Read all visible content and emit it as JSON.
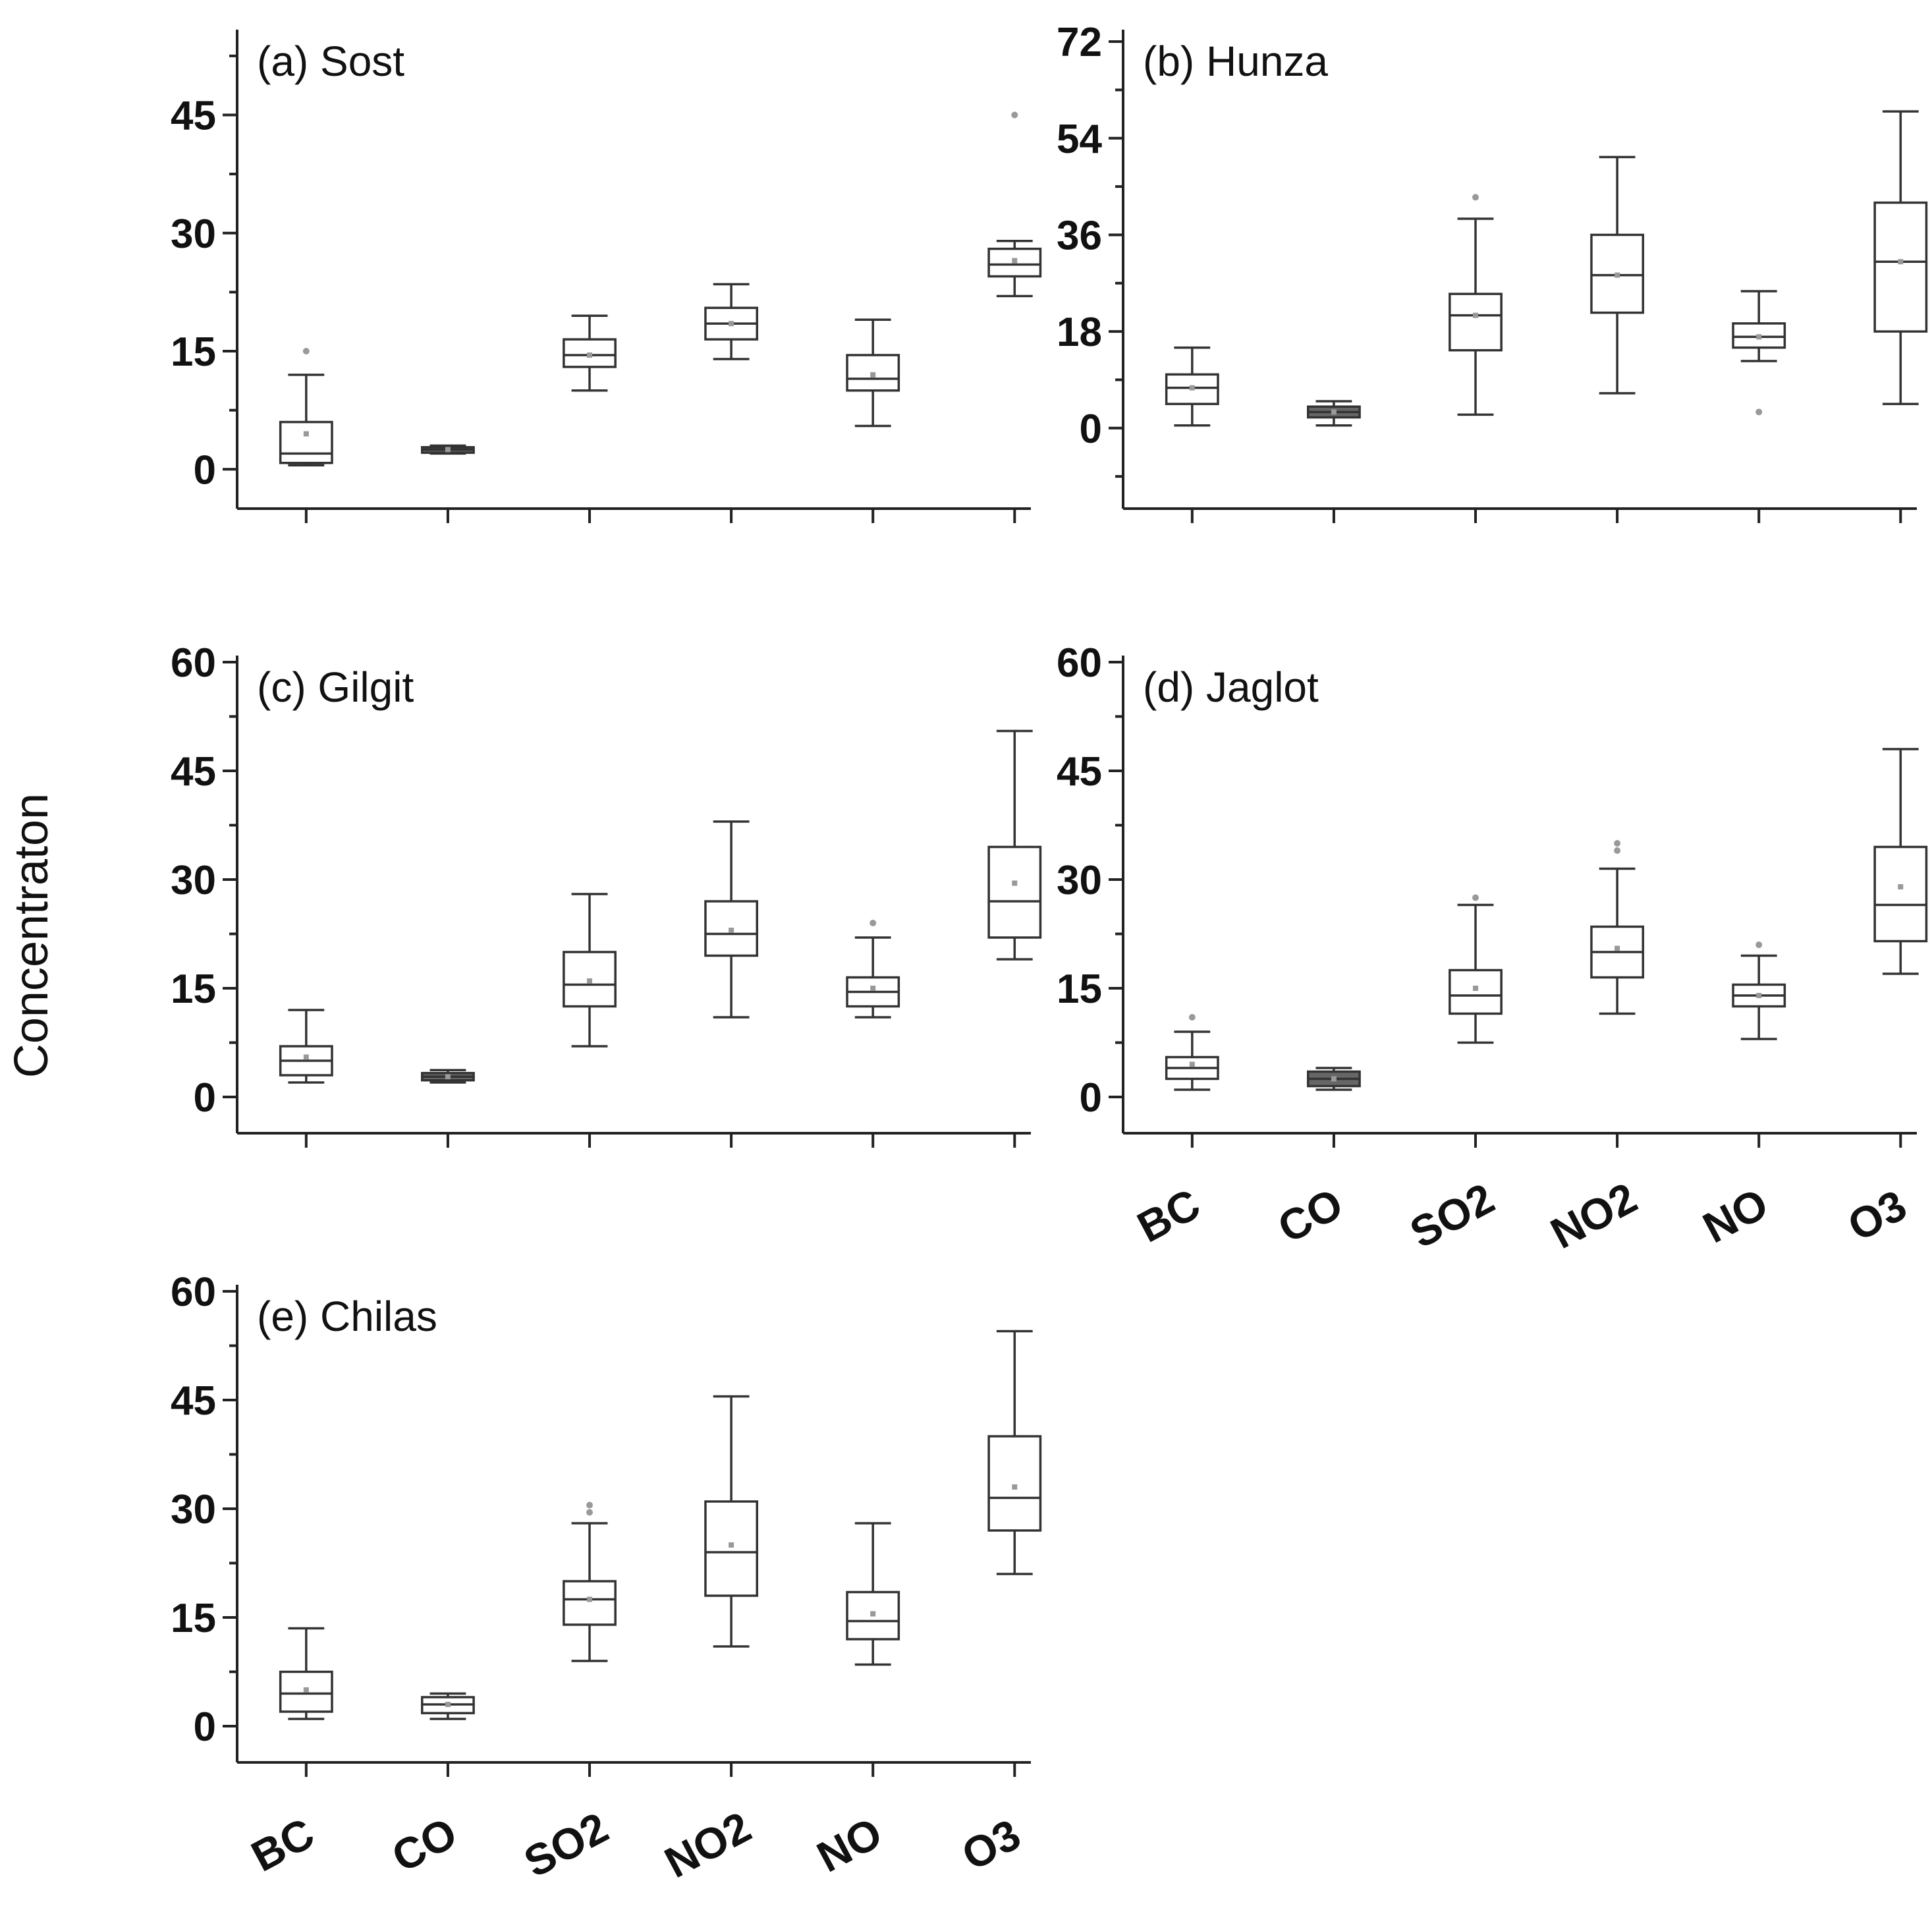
{
  "chart_data": {
    "type": "box",
    "ylabel": "Concentraton",
    "categories": [
      "BC",
      "CO",
      "SO2",
      "NO2",
      "NO",
      "O3"
    ],
    "panels": [
      {
        "id": "a",
        "title": "(a) Sost",
        "ylim": [
          -5,
          55
        ],
        "yticks": [
          0,
          15,
          30,
          45
        ],
        "show_category_labels": false,
        "boxes": [
          {
            "min": 0.5,
            "q1": 0.8,
            "median": 2,
            "q3": 6,
            "max": 12,
            "mean": 4.5,
            "outliers": [
              15
            ]
          },
          {
            "min": 2,
            "q1": 2.1,
            "median": 2.5,
            "q3": 2.8,
            "max": 3,
            "mean": 2.5,
            "outliers": [],
            "dark": true
          },
          {
            "min": 10,
            "q1": 13,
            "median": 14.5,
            "q3": 16.5,
            "max": 19.5,
            "mean": 14.5,
            "outliers": []
          },
          {
            "min": 14,
            "q1": 16.5,
            "median": 18.5,
            "q3": 20.5,
            "max": 23.5,
            "mean": 18.5,
            "outliers": []
          },
          {
            "min": 5.5,
            "q1": 10,
            "median": 11.5,
            "q3": 14.5,
            "max": 19,
            "mean": 12,
            "outliers": []
          },
          {
            "min": 22,
            "q1": 24.5,
            "median": 26,
            "q3": 28,
            "max": 29,
            "mean": 26.5,
            "outliers": [
              45
            ]
          }
        ]
      },
      {
        "id": "b",
        "title": "(b) Hunza",
        "ylim": [
          -15,
          73
        ],
        "yticks": [
          0,
          18,
          36,
          54,
          72
        ],
        "show_category_labels": false,
        "boxes": [
          {
            "min": 0.5,
            "q1": 4.5,
            "median": 7.5,
            "q3": 10,
            "max": 15,
            "mean": 7.5,
            "outliers": []
          },
          {
            "min": 0.5,
            "q1": 2,
            "median": 3,
            "q3": 4,
            "max": 5,
            "mean": 3,
            "outliers": [],
            "dark": true
          },
          {
            "min": 2.5,
            "q1": 14.5,
            "median": 21,
            "q3": 25,
            "max": 39,
            "mean": 21,
            "outliers": [
              43
            ]
          },
          {
            "min": 6.5,
            "q1": 21.5,
            "median": 28.5,
            "q3": 36,
            "max": 50.5,
            "mean": 28.5,
            "outliers": []
          },
          {
            "min": 12.5,
            "q1": 15,
            "median": 17,
            "q3": 19.5,
            "max": 25.5,
            "mean": 17,
            "outliers": [
              3
            ]
          },
          {
            "min": 4.5,
            "q1": 18,
            "median": 31,
            "q3": 42,
            "max": 59,
            "mean": 31,
            "outliers": []
          }
        ]
      },
      {
        "id": "c",
        "title": "(c) Gilgit",
        "ylim": [
          -5,
          60
        ],
        "yticks": [
          0,
          15,
          30,
          45,
          60
        ],
        "show_category_labels": false,
        "boxes": [
          {
            "min": 2,
            "q1": 3,
            "median": 5,
            "q3": 7,
            "max": 12,
            "mean": 5.5,
            "outliers": []
          },
          {
            "min": 2,
            "q1": 2.3,
            "median": 2.8,
            "q3": 3.3,
            "max": 3.7,
            "mean": 2.8,
            "outliers": [],
            "dark": true
          },
          {
            "min": 7,
            "q1": 12.5,
            "median": 15.5,
            "q3": 20,
            "max": 28,
            "mean": 16,
            "outliers": []
          },
          {
            "min": 11,
            "q1": 19.5,
            "median": 22.5,
            "q3": 27,
            "max": 38,
            "mean": 23,
            "outliers": []
          },
          {
            "min": 11,
            "q1": 12.5,
            "median": 14.5,
            "q3": 16.5,
            "max": 22,
            "mean": 15,
            "outliers": [
              24
            ]
          },
          {
            "min": 19,
            "q1": 22,
            "median": 27,
            "q3": 34.5,
            "max": 50.5,
            "mean": 29.5,
            "outliers": []
          }
        ]
      },
      {
        "id": "d",
        "title": "(d) Jaglot",
        "ylim": [
          -5,
          60
        ],
        "yticks": [
          0,
          15,
          30,
          45,
          60
        ],
        "show_category_labels": true,
        "boxes": [
          {
            "min": 1,
            "q1": 2.5,
            "median": 4,
            "q3": 5.5,
            "max": 9,
            "mean": 4.5,
            "outliers": [
              11
            ]
          },
          {
            "min": 1,
            "q1": 1.5,
            "median": 2.5,
            "q3": 3.5,
            "max": 4,
            "mean": 2.5,
            "outliers": [],
            "dark": true
          },
          {
            "min": 7.5,
            "q1": 11.5,
            "median": 14,
            "q3": 17.5,
            "max": 26.5,
            "mean": 15,
            "outliers": [
              27.5
            ]
          },
          {
            "min": 11.5,
            "q1": 16.5,
            "median": 20,
            "q3": 23.5,
            "max": 31.5,
            "mean": 20.5,
            "outliers": [
              34,
              35
            ]
          },
          {
            "min": 8,
            "q1": 12.5,
            "median": 14,
            "q3": 15.5,
            "max": 19.5,
            "mean": 14,
            "outliers": [
              21
            ]
          },
          {
            "min": 17,
            "q1": 21.5,
            "median": 26.5,
            "q3": 34.5,
            "max": 48,
            "mean": 29,
            "outliers": []
          }
        ]
      },
      {
        "id": "e",
        "title": "(e) Chilas",
        "ylim": [
          -5,
          60
        ],
        "yticks": [
          0,
          15,
          30,
          45,
          60
        ],
        "show_category_labels": true,
        "boxes": [
          {
            "min": 1,
            "q1": 2,
            "median": 4.5,
            "q3": 7.5,
            "max": 13.5,
            "mean": 5,
            "outliers": []
          },
          {
            "min": 1,
            "q1": 1.8,
            "median": 3,
            "q3": 4,
            "max": 4.5,
            "mean": 3,
            "outliers": []
          },
          {
            "min": 9,
            "q1": 14,
            "median": 17.5,
            "q3": 20,
            "max": 28,
            "mean": 17.5,
            "outliers": [
              29.5,
              30.5
            ]
          },
          {
            "min": 11,
            "q1": 18,
            "median": 24,
            "q3": 31,
            "max": 45.5,
            "mean": 25,
            "outliers": []
          },
          {
            "min": 8.5,
            "q1": 12,
            "median": 14.5,
            "q3": 18.5,
            "max": 28,
            "mean": 15.5,
            "outliers": []
          },
          {
            "min": 21,
            "q1": 27,
            "median": 31.5,
            "q3": 40,
            "max": 54.5,
            "mean": 33,
            "outliers": []
          }
        ]
      }
    ]
  }
}
